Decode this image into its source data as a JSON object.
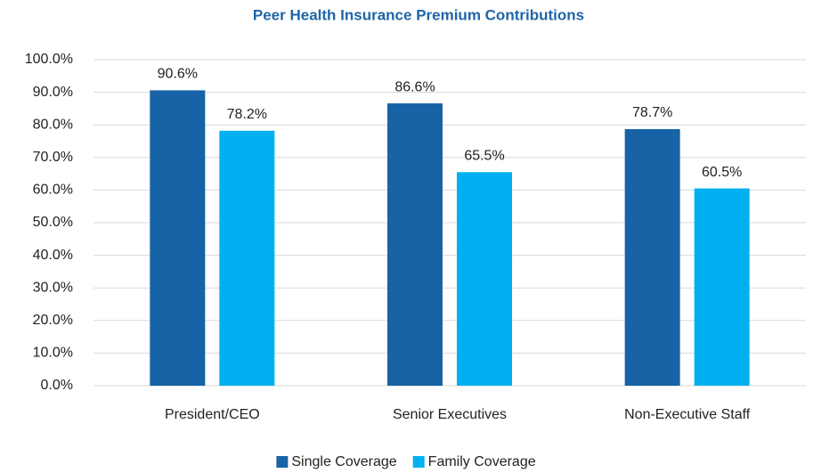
{
  "chart_data": {
    "type": "bar",
    "title": "Peer Health Insurance Premium Contributions",
    "categories": [
      "President/CEO",
      "Senior Executives",
      "Non-Executive Staff"
    ],
    "series": [
      {
        "name": "Single Coverage",
        "color": "#1763a6",
        "values": [
          90.6,
          86.6,
          78.7
        ],
        "value_labels": [
          "90.6%",
          "86.6%",
          "78.7%"
        ]
      },
      {
        "name": "Family Coverage",
        "color": "#00b0f0",
        "values": [
          78.2,
          65.5,
          60.5
        ],
        "value_labels": [
          "78.2%",
          "65.5%",
          "60.5%"
        ]
      }
    ],
    "ylim": [
      0,
      100
    ],
    "yticks": [
      {
        "value": 0,
        "label": "0.0%"
      },
      {
        "value": 10,
        "label": "10.0%"
      },
      {
        "value": 20,
        "label": "20.0%"
      },
      {
        "value": 30,
        "label": "30.0%"
      },
      {
        "value": 40,
        "label": "40.0%"
      },
      {
        "value": 50,
        "label": "50.0%"
      },
      {
        "value": 60,
        "label": "60.0%"
      },
      {
        "value": 70,
        "label": "70.0%"
      },
      {
        "value": 80,
        "label": "80.0%"
      },
      {
        "value": 90,
        "label": "90.0%"
      },
      {
        "value": 100,
        "label": "100.0%"
      }
    ],
    "grid": true,
    "legend": "bottom"
  }
}
